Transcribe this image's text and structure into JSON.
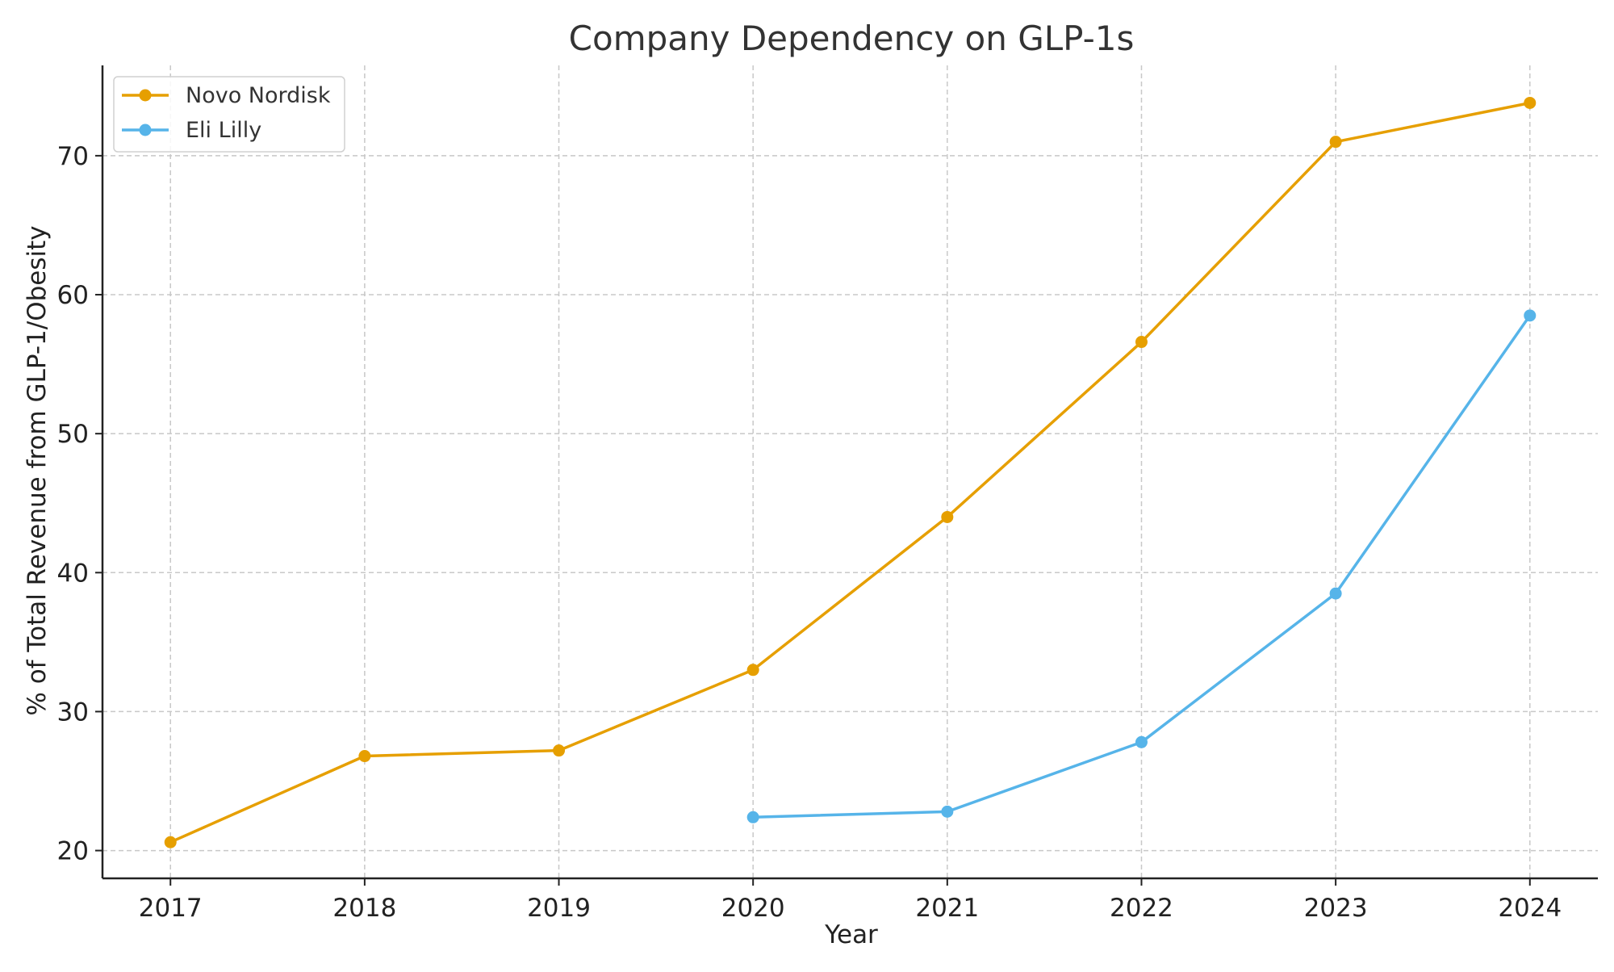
{
  "chart_data": {
    "type": "line",
    "title": "Company Dependency on GLP-1s",
    "xlabel": "Year",
    "ylabel": "% of Total Revenue from GLP-1/Obesity",
    "x": [
      2017,
      2018,
      2019,
      2020,
      2021,
      2022,
      2023,
      2024
    ],
    "x_ticks": [
      "2017",
      "2018",
      "2019",
      "2020",
      "2021",
      "2022",
      "2023",
      "2024"
    ],
    "y_ticks": [
      20,
      30,
      40,
      50,
      60,
      70
    ],
    "xlim": [
      2016.65,
      2024.35
    ],
    "ylim": [
      18.0,
      76.5
    ],
    "grid": true,
    "grid_style": "dashed",
    "legend_position": "top-left",
    "series": [
      {
        "name": "Novo Nordisk",
        "color": "#E69F00",
        "marker": "circle",
        "values": [
          20.6,
          26.8,
          27.2,
          33.0,
          44.0,
          56.6,
          71.0,
          73.8
        ]
      },
      {
        "name": "Eli Lilly",
        "color": "#56B4E9",
        "marker": "circle",
        "values": [
          null,
          null,
          null,
          22.4,
          22.8,
          27.8,
          38.5,
          58.5
        ]
      }
    ]
  }
}
